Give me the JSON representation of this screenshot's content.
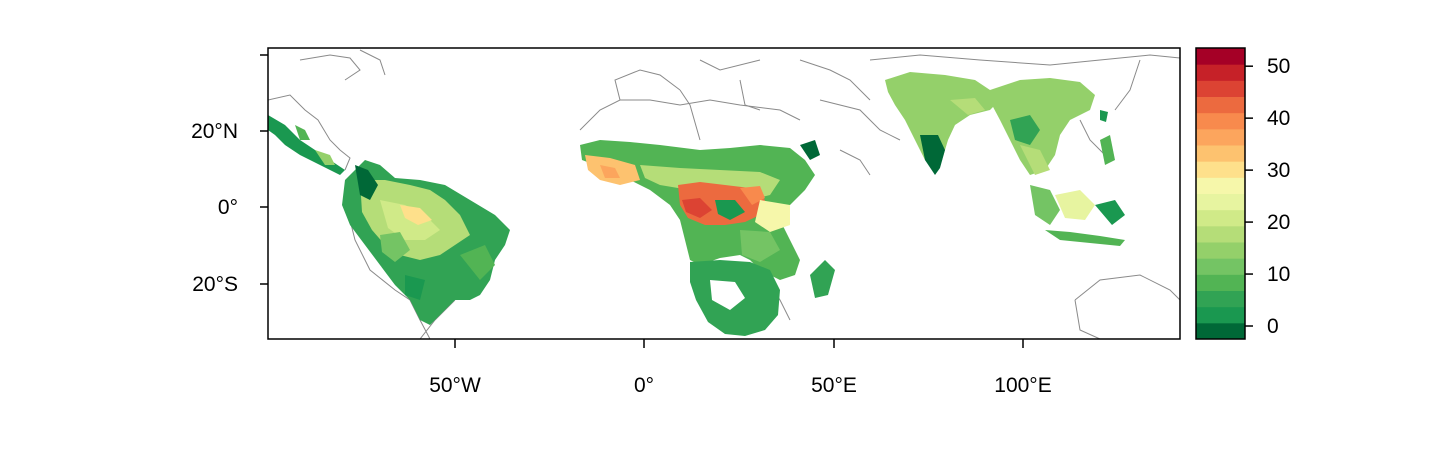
{
  "map": {
    "axes": {
      "x_ticks": [
        "50°W",
        "0°",
        "50°E",
        "100°E"
      ],
      "y_ticks": [
        "20°N",
        "0°",
        "20°S"
      ]
    },
    "legend": {
      "tick_labels": [
        "50",
        "40",
        "30",
        "20",
        "10",
        "0"
      ],
      "color_scale_low_to_high": [
        "#006837",
        "#1a9850",
        "#31a354",
        "#52b454",
        "#74c464",
        "#94d06a",
        "#b5dd78",
        "#d0ea88",
        "#e7f4a0",
        "#f6f7aa",
        "#fee08b",
        "#fdc26f",
        "#fca55d",
        "#f88a4d",
        "#ec6a3f",
        "#dc4333",
        "#c62128",
        "#a50026"
      ],
      "range": [
        -2.5,
        53.5
      ]
    },
    "colors": {
      "dense_green": "#006837",
      "mid_green": "#31a354",
      "light_green": "#94d06a",
      "pale_yellow": "#f6f7aa",
      "orange": "#fca55d",
      "red": "#dc4333",
      "border_gray": "#8a8a8a"
    }
  }
}
